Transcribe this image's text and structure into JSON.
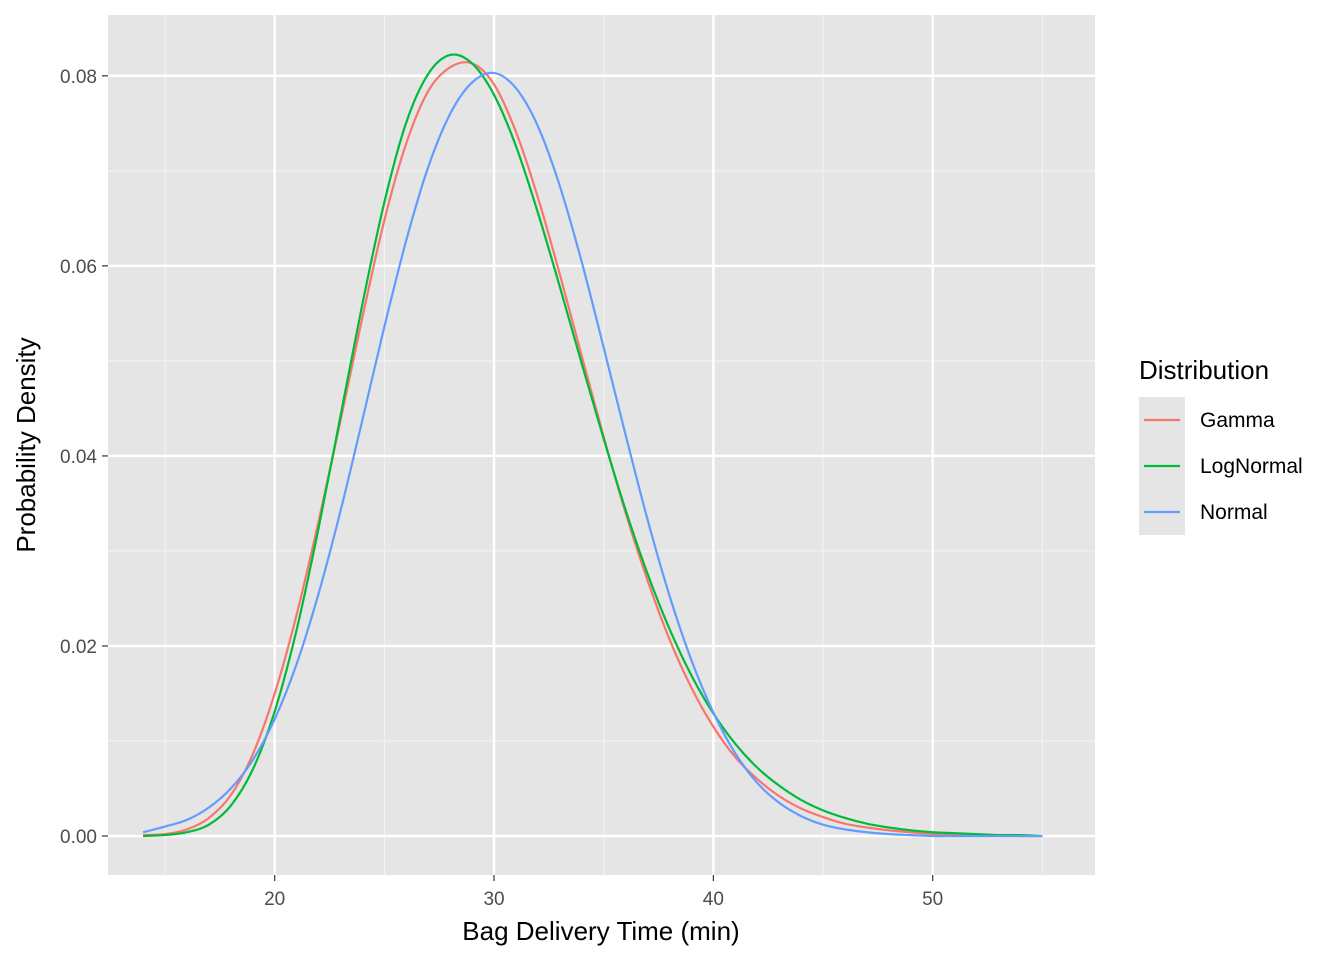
{
  "chart_data": {
    "type": "line",
    "xlabel": "Bag Delivery Time (min)",
    "ylabel": "Probability Density",
    "xlim": [
      12.4,
      57.4
    ],
    "ylim": [
      -0.0041,
      0.0864
    ],
    "x_ticks": [
      20,
      30,
      40,
      50
    ],
    "x_tick_labels": [
      "20",
      "30",
      "40",
      "50"
    ],
    "x_minor_ticks": [
      15,
      25,
      35,
      45,
      55
    ],
    "y_ticks": [
      0.0,
      0.02,
      0.04,
      0.06,
      0.08
    ],
    "y_tick_labels": [
      "0.00",
      "0.02",
      "0.04",
      "0.06",
      "0.08"
    ],
    "y_minor_ticks": [
      0.01,
      0.03,
      0.05,
      0.07
    ],
    "grid": true,
    "background": "#e5e5e5",
    "legend": {
      "title": "Distribution",
      "position": "right",
      "entries": [
        "Gamma",
        "LogNormal",
        "Normal"
      ]
    },
    "x": [
      14,
      15,
      16,
      17,
      18,
      19,
      20,
      21,
      22,
      23,
      24,
      25,
      26,
      27,
      28,
      29,
      30,
      31,
      32,
      33,
      34,
      35,
      36,
      37,
      38,
      39,
      40,
      41,
      42,
      43,
      44,
      45,
      46,
      47,
      48,
      49,
      50,
      51,
      52,
      53,
      54,
      55
    ],
    "series": [
      {
        "name": "Gamma",
        "color": "#f8766d",
        "values": [
          0.0001,
          0.0002,
          0.0007,
          0.0019,
          0.0043,
          0.0086,
          0.015,
          0.0233,
          0.0331,
          0.0437,
          0.0546,
          0.0648,
          0.0729,
          0.0784,
          0.0809,
          0.0813,
          0.0791,
          0.0741,
          0.0672,
          0.0591,
          0.0505,
          0.042,
          0.034,
          0.0269,
          0.0207,
          0.0156,
          0.0115,
          0.0083,
          0.006,
          0.0042,
          0.0029,
          0.002,
          0.0013,
          0.0009,
          0.0006,
          0.0004,
          0.0002,
          0.0002,
          0.0001,
          0.0001,
          0.0,
          0.0
        ]
      },
      {
        "name": "LogNormal",
        "color": "#00ba38",
        "values": [
          0.0,
          0.0001,
          0.0004,
          0.0012,
          0.0032,
          0.007,
          0.0131,
          0.0217,
          0.0324,
          0.0442,
          0.056,
          0.0667,
          0.0751,
          0.0802,
          0.0822,
          0.0813,
          0.078,
          0.0726,
          0.0656,
          0.0578,
          0.0497,
          0.0418,
          0.0343,
          0.0276,
          0.0218,
          0.0169,
          0.0129,
          0.0097,
          0.0072,
          0.0053,
          0.0038,
          0.0027,
          0.0019,
          0.0013,
          0.0009,
          0.0006,
          0.0004,
          0.0003,
          0.0002,
          0.0001,
          0.0001,
          0.0
        ]
      },
      {
        "name": "Normal",
        "color": "#619cff",
        "values": [
          0.0004,
          0.001,
          0.0017,
          0.003,
          0.005,
          0.008,
          0.0123,
          0.0181,
          0.0255,
          0.0342,
          0.0438,
          0.0536,
          0.0627,
          0.0704,
          0.076,
          0.0793,
          0.0803,
          0.0787,
          0.0747,
          0.0684,
          0.0604,
          0.0514,
          0.0422,
          0.0333,
          0.0253,
          0.0185,
          0.013,
          0.0087,
          0.0056,
          0.0035,
          0.0021,
          0.0012,
          0.0007,
          0.0004,
          0.0002,
          0.0001,
          0.0,
          0.0,
          0.0,
          0.0,
          0.0,
          0.0
        ]
      }
    ]
  }
}
